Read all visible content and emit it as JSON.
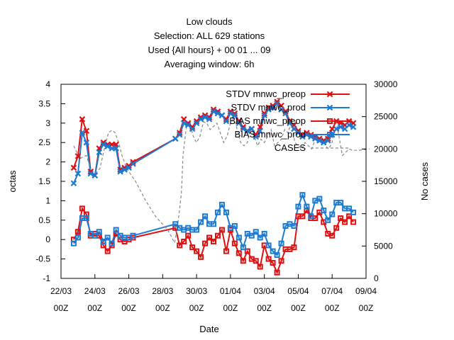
{
  "chart_data": {
    "type": "line",
    "title_lines": [
      "Low clouds",
      "Selection: ALL    629 stations",
      "Used {All hours} + 00 01 ... 09",
      "Averaging window:  6h"
    ],
    "xlabel": "Date",
    "ylabel": "octas",
    "y2label": "No cases",
    "ylim": [
      -1,
      4
    ],
    "y2lim": [
      0,
      30000
    ],
    "yticks": [
      "-1",
      "-0.5",
      "0",
      "0.5",
      "1",
      "1.5",
      "2",
      "2.5",
      "3",
      "3.5",
      "4"
    ],
    "y2ticks": [
      "0",
      "5000",
      "10000",
      "15000",
      "20000",
      "25000",
      "30000"
    ],
    "xticks": [
      {
        "date": "22/03",
        "hour": "00Z"
      },
      {
        "date": "24/03",
        "hour": "00Z"
      },
      {
        "date": "26/03",
        "hour": "00Z"
      },
      {
        "date": "28/03",
        "hour": "00Z"
      },
      {
        "date": "30/03",
        "hour": "00Z"
      },
      {
        "date": "01/04",
        "hour": "00Z"
      },
      {
        "date": "03/04",
        "hour": "00Z"
      },
      {
        "date": "05/04",
        "hour": "00Z"
      },
      {
        "date": "07/04",
        "hour": "00Z"
      },
      {
        "date": "09/04",
        "hour": "00Z"
      }
    ],
    "x_days": [
      22.75,
      23.0,
      23.25,
      23.5,
      23.75,
      24.0,
      24.25,
      24.5,
      24.75,
      25.0,
      25.25,
      25.5,
      25.75,
      26.0,
      26.25,
      28.75,
      29.0,
      29.25,
      29.5,
      29.75,
      30.0,
      30.25,
      30.5,
      30.75,
      31.0,
      31.25,
      31.5,
      31.75,
      32.0,
      32.25,
      32.5,
      32.75,
      33.0,
      33.25,
      33.5,
      33.75,
      34.0,
      34.25,
      34.5,
      34.75,
      35.0,
      35.25,
      35.5,
      35.75,
      36.0,
      36.25,
      36.5,
      36.75,
      37.0,
      37.25,
      37.5,
      37.75,
      38.0,
      38.25,
      38.5,
      38.75,
      39.0,
      39.25
    ],
    "grid": false,
    "legend_position": "top-right",
    "series": [
      {
        "name": "STDV mnwc_preop",
        "axis": "y",
        "color": "#e01010",
        "marker": "x",
        "values": [
          1.85,
          2.15,
          3.1,
          2.8,
          1.75,
          1.65,
          2.35,
          2.5,
          2.45,
          2.45,
          2.45,
          1.8,
          1.85,
          1.9,
          2.0,
          2.6,
          2.75,
          3.1,
          3.0,
          2.9,
          3.05,
          3.15,
          3.2,
          3.15,
          3.35,
          3.3,
          3.2,
          3.1,
          3.3,
          3.25,
          3.05,
          2.9,
          2.8,
          2.85,
          2.7,
          2.9,
          3.25,
          3.4,
          3.45,
          3.55,
          3.45,
          3.3,
          3.05,
          2.95,
          2.8,
          2.7,
          2.75,
          2.7,
          2.65,
          2.6,
          2.55,
          2.6,
          2.85,
          3.05,
          3.0,
          2.95,
          3.05,
          3.0
        ]
      },
      {
        "name": "STDV mnwc_prod",
        "axis": "y",
        "color": "#1a7ad4",
        "marker": "x",
        "values": [
          1.45,
          1.7,
          2.75,
          2.5,
          1.7,
          1.65,
          2.25,
          2.45,
          2.4,
          2.35,
          2.35,
          1.75,
          1.8,
          1.85,
          1.95,
          2.6,
          2.7,
          3.0,
          2.95,
          2.85,
          3.0,
          3.1,
          3.15,
          3.1,
          3.3,
          3.25,
          3.2,
          3.05,
          3.25,
          3.2,
          3.0,
          2.85,
          2.8,
          2.85,
          2.65,
          2.8,
          3.2,
          3.35,
          3.4,
          3.5,
          3.35,
          3.25,
          3.0,
          2.85,
          2.75,
          2.65,
          2.7,
          2.65,
          2.6,
          2.55,
          2.5,
          2.55,
          2.7,
          2.85,
          2.9,
          2.85,
          2.95,
          2.9
        ]
      },
      {
        "name": "BIAS mnwc_preop",
        "axis": "y",
        "color": "#e01010",
        "marker": "square",
        "values": [
          0.0,
          0.2,
          0.8,
          0.65,
          0.1,
          0.15,
          0.1,
          -0.15,
          -0.3,
          -0.15,
          0.15,
          0.0,
          -0.05,
          0.0,
          0.05,
          0.3,
          -0.15,
          -0.05,
          0.1,
          -0.2,
          -0.3,
          -0.45,
          -0.1,
          0.05,
          -0.05,
          0.1,
          0.25,
          -0.3,
          0.25,
          -0.1,
          -0.35,
          -0.55,
          -0.3,
          -0.5,
          -0.55,
          -0.7,
          -0.15,
          -0.5,
          -0.6,
          -0.85,
          -0.55,
          -0.25,
          -0.25,
          -0.2,
          0.6,
          0.6,
          0.75,
          0.55,
          0.55,
          0.7,
          0.45,
          0.15,
          0.1,
          0.3,
          0.55,
          0.45,
          0.6,
          0.45
        ]
      },
      {
        "name": "BIAS mnwc_prod",
        "axis": "y",
        "color": "#1a7ad4",
        "marker": "square",
        "values": [
          -0.1,
          0.05,
          0.55,
          0.55,
          0.15,
          0.1,
          0.2,
          -0.05,
          0.05,
          -0.1,
          0.25,
          0.1,
          0.05,
          0.05,
          0.1,
          0.4,
          0.3,
          0.25,
          0.3,
          0.25,
          0.25,
          0.45,
          0.6,
          0.4,
          0.4,
          0.7,
          0.9,
          0.7,
          0.3,
          0.35,
          0.05,
          -0.2,
          0.15,
          0.1,
          0.2,
          0.05,
          0.15,
          -0.15,
          -0.3,
          -0.4,
          -0.1,
          0.35,
          0.4,
          0.35,
          0.85,
          1.15,
          0.85,
          0.6,
          1.0,
          1.05,
          0.75,
          0.5,
          0.65,
          0.95,
          0.95,
          0.8,
          0.8,
          0.7
        ]
      },
      {
        "name": "CASES",
        "axis": "y2",
        "color": "#888888",
        "marker": "none",
        "dashed": true,
        "x": [
          22.75,
          23.1,
          23.5,
          23.8,
          24.0,
          24.3,
          24.6,
          24.8,
          25.0,
          25.2,
          25.4,
          25.6,
          25.8,
          26.0,
          26.4,
          27.0,
          27.6,
          28.3,
          28.7,
          28.9,
          29.1,
          29.2,
          29.4,
          29.6,
          29.8,
          30.0,
          30.2,
          30.4,
          30.6,
          30.8,
          31.0,
          31.2,
          31.4,
          31.6,
          31.8,
          32.0,
          32.2,
          32.4,
          32.6,
          32.8,
          33.0,
          33.2,
          33.4,
          33.6,
          33.8,
          34.0,
          34.2,
          34.4,
          34.6,
          34.8,
          35.0,
          35.2,
          35.4,
          35.6,
          35.8,
          36.0,
          36.2,
          36.4,
          36.6,
          36.8,
          37.0,
          37.2,
          37.4,
          37.6,
          37.8,
          38.0,
          38.2,
          38.4,
          38.6,
          38.8,
          39.0,
          39.2,
          39.6,
          40.2
        ],
        "values": [
          20500,
          18500,
          19000,
          16500,
          16000,
          17000,
          20500,
          22500,
          22900,
          22500,
          21000,
          19000,
          17500,
          16500,
          15000,
          12000,
          9500,
          7500,
          5500,
          8500,
          13000,
          19000,
          23500,
          24000,
          22000,
          21000,
          22000,
          24200,
          24000,
          23000,
          23500,
          24000,
          22500,
          21000,
          22000,
          24000,
          25000,
          23000,
          21000,
          20500,
          21000,
          23500,
          22000,
          20500,
          21500,
          21000,
          22000,
          23000,
          20500,
          21000,
          21500,
          23000,
          22500,
          24200,
          21000,
          20500,
          20000,
          21000,
          20500,
          20000,
          21500,
          21000,
          22000,
          20500,
          20000,
          21000,
          24500,
          22000,
          19000,
          19500,
          20000,
          19800,
          19800,
          20000
        ]
      }
    ]
  }
}
